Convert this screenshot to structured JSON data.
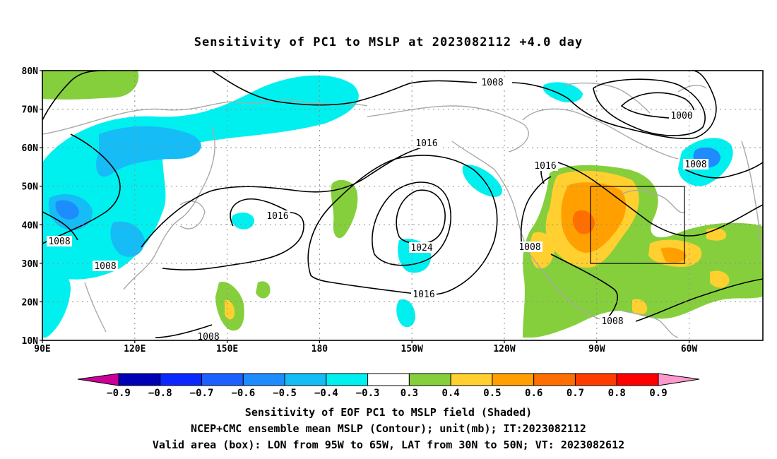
{
  "title": "Sensitivity of PC1 to MSLP at 2023082112 +4.0 day",
  "axes": {
    "lat_labels": [
      "10N",
      "20N",
      "30N",
      "40N",
      "50N",
      "60N",
      "70N",
      "80N"
    ],
    "lon_labels": [
      "90E",
      "120E",
      "150E",
      "180",
      "150W",
      "120W",
      "90W",
      "60W"
    ]
  },
  "contour_labels": [
    "1008",
    "1000",
    "1016",
    "1016",
    "1008",
    "1016",
    "1024",
    "1016",
    "1008",
    "1008",
    "1008",
    "1008",
    "1008"
  ],
  "colorbar": {
    "labels": [
      "-0.9",
      "-0.8",
      "-0.7",
      "-0.6",
      "-0.5",
      "-0.4",
      "-0.3",
      "0.3",
      "0.4",
      "0.5",
      "0.6",
      "0.7",
      "0.8",
      "0.9"
    ],
    "colors": [
      "#0000b4",
      "#0a28ff",
      "#1e60ff",
      "#1e8cff",
      "#16bcf6",
      "#00f0f0",
      "#ffffff",
      "#86cf3c",
      "#ffd030",
      "#ffa000",
      "#ff6e00",
      "#ff3c00",
      "#ff0000"
    ],
    "left_end_color": "#cc0099",
    "right_end_color": "#ff99cc"
  },
  "box": {
    "lon": "95W to 65W",
    "lat": "30N to 50N"
  },
  "footer": {
    "line1": "Sensitivity of EOF PC1 to MSLP field (Shaded)",
    "line2": "NCEP+CMC ensemble mean MSLP (Contour); unit(mb); IT:2023082112",
    "line3": "Valid area (box): LON from 95W to 65W, LAT from 30N to 50N; VT: 2023082612"
  }
}
